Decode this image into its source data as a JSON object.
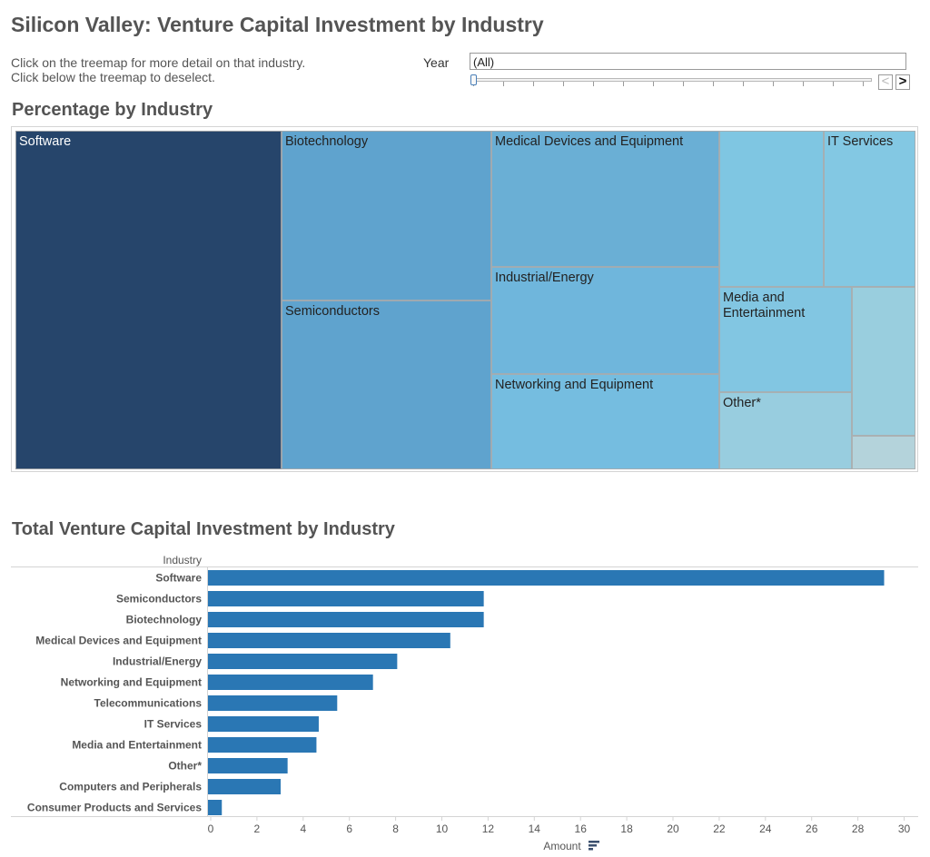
{
  "header": {
    "title": "Silicon Valley: Venture Capital Investment by Industry",
    "instruction_1": "Click on the treemap for more detail on that industry.",
    "instruction_2": "Click below the treemap to deselect."
  },
  "filter": {
    "year_label": "Year",
    "year_value": "(All)",
    "prev_glyph": "<",
    "next_glyph": ">"
  },
  "treemap": {
    "title": "Percentage by Industry",
    "tiles": [
      {
        "label": "Software",
        "color": "#26456b",
        "text_color": "#ffffff"
      },
      {
        "label": "Biotechnology",
        "color": "#5fa3ce",
        "text_color": "#222222"
      },
      {
        "label": "Semiconductors",
        "color": "#5fa3ce",
        "text_color": "#222222"
      },
      {
        "label": "Medical Devices and Equipment",
        "color": "#6aafd5",
        "text_color": "#222222"
      },
      {
        "label": "Industrial/Energy",
        "color": "#6fb6dc",
        "text_color": "#222222"
      },
      {
        "label": "Networking and Equipment",
        "color": "#75bde0",
        "text_color": "#222222"
      },
      {
        "label": "",
        "color": "#7fc6e2",
        "text_color": "#222222"
      },
      {
        "label": "IT Services",
        "color": "#83c8e3",
        "text_color": "#222222"
      },
      {
        "label": "Media and Entertainment",
        "color": "#82c6e2",
        "text_color": "#222222"
      },
      {
        "label": "Other*",
        "color": "#98cddf",
        "text_color": "#222222"
      },
      {
        "label": "",
        "color": "#99cede",
        "text_color": "#222222"
      },
      {
        "label": "",
        "color": "#b4d3db",
        "text_color": "#222222"
      }
    ]
  },
  "bar_section": {
    "title": "Total Venture Capital Investment by Industry",
    "sort_icon": "sort-icon"
  },
  "chart_data": {
    "type": "bar",
    "orientation": "horizontal",
    "title": "Total Venture Capital Investment by Industry",
    "xlabel": "Amount",
    "ylabel": "Industry",
    "categories": [
      "Software",
      "Semiconductors",
      "Biotechnology",
      "Medical Devices and Equipment",
      "Industrial/Energy",
      "Networking and Equipment",
      "Telecommunications",
      "IT Services",
      "Media and Entertainment",
      "Other*",
      "Computers and Peripherals",
      "Consumer Products and Services"
    ],
    "values": [
      29.3,
      11.95,
      11.95,
      10.5,
      8.2,
      7.15,
      5.6,
      4.8,
      4.7,
      3.45,
      3.15,
      0.6
    ],
    "xlim": [
      0,
      30
    ],
    "xticks": [
      "0",
      "2",
      "4",
      "6",
      "8",
      "10",
      "12",
      "14",
      "16",
      "18",
      "20",
      "22",
      "24",
      "26",
      "28",
      "30"
    ],
    "bar_color": "#2a77b4",
    "grid": false
  }
}
